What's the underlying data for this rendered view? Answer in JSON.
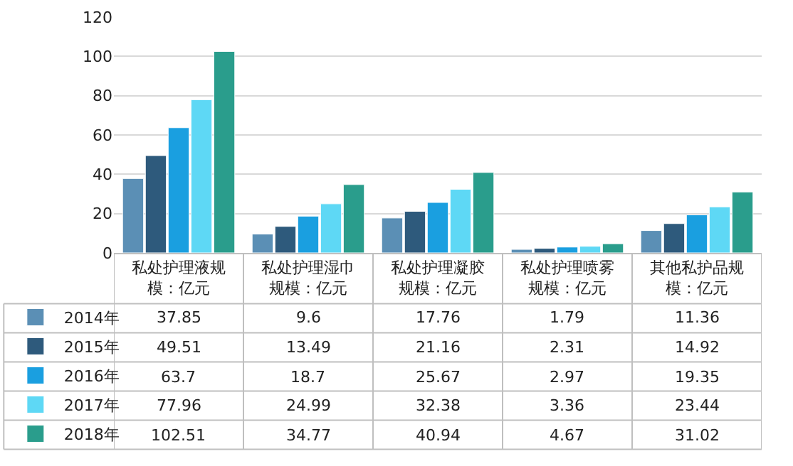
{
  "chart_data": {
    "type": "bar",
    "categories": [
      "私处护理液规模：亿元",
      "私处护理湿巾规模：亿元",
      "私处护理凝胶规模：亿元",
      "私处护理喷雾规模：亿元",
      "其他私护品规模：亿元"
    ],
    "series": [
      {
        "name": "2014年",
        "color": "#5b8fb5",
        "values": [
          37.85,
          9.6,
          17.76,
          1.79,
          11.36
        ]
      },
      {
        "name": "2015年",
        "color": "#2e5a7c",
        "values": [
          49.51,
          13.49,
          21.16,
          2.31,
          14.92
        ]
      },
      {
        "name": "2016年",
        "color": "#1a9fe0",
        "values": [
          63.7,
          18.7,
          25.67,
          2.97,
          19.35
        ]
      },
      {
        "name": "2017年",
        "color": "#5ed8f5",
        "values": [
          77.96,
          24.99,
          32.38,
          3.36,
          23.44
        ]
      },
      {
        "name": "2018年",
        "color": "#2a9d8c",
        "values": [
          102.51,
          34.77,
          40.94,
          4.67,
          31.02
        ]
      }
    ],
    "ylim": [
      0,
      120
    ],
    "yticks": [
      0,
      20,
      40,
      60,
      80,
      100,
      120
    ],
    "grid": "y",
    "legend": "bottom left",
    "data_labels": true
  }
}
